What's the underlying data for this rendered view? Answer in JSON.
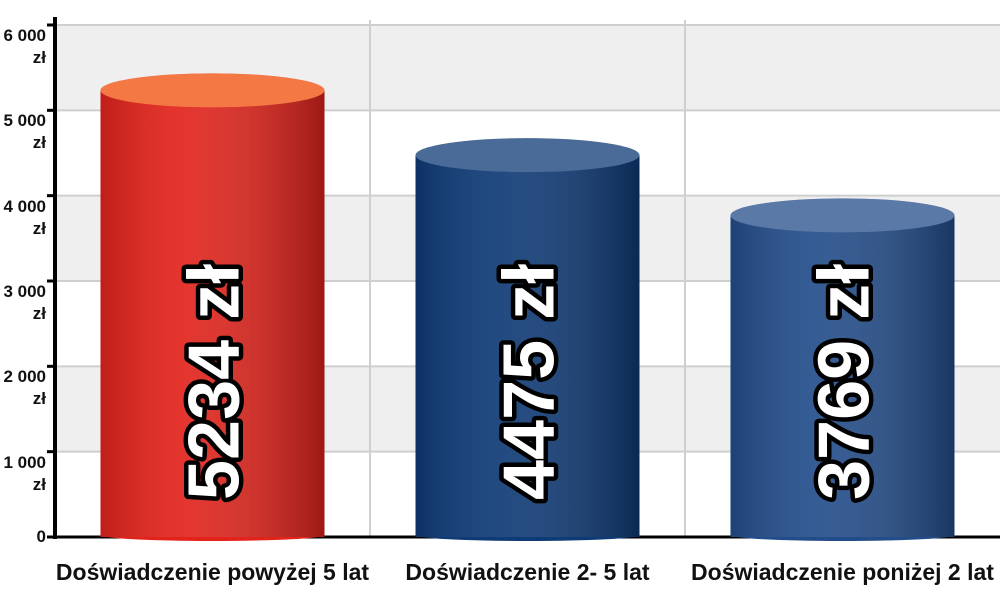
{
  "chart_data": {
    "type": "bar",
    "categories": [
      "Doświadczenie powyżej 5 lat",
      "Doświadczenie 2- 5 lat",
      "Doświadczenie poniżej 2 lat"
    ],
    "values": [
      5234,
      4475,
      3769
    ],
    "value_labels": [
      "5234 zł",
      "4475 zł",
      "3769 zł"
    ],
    "colors": [
      "#e1231b",
      "#0e3a76",
      "#234d8a"
    ],
    "ylim": [
      0,
      6000
    ],
    "yticks": [
      0,
      {
        "value": 1000,
        "label": "1 000 zł"
      },
      {
        "value": 2000,
        "label": "2 000 zł"
      },
      {
        "value": 3000,
        "label": "3 000 zł"
      },
      {
        "value": 4000,
        "label": "4 000 zł"
      },
      {
        "value": 5000,
        "label": "5 000 zł"
      },
      {
        "value": 6000,
        "label": "6 000 zł"
      }
    ],
    "grid": true
  }
}
